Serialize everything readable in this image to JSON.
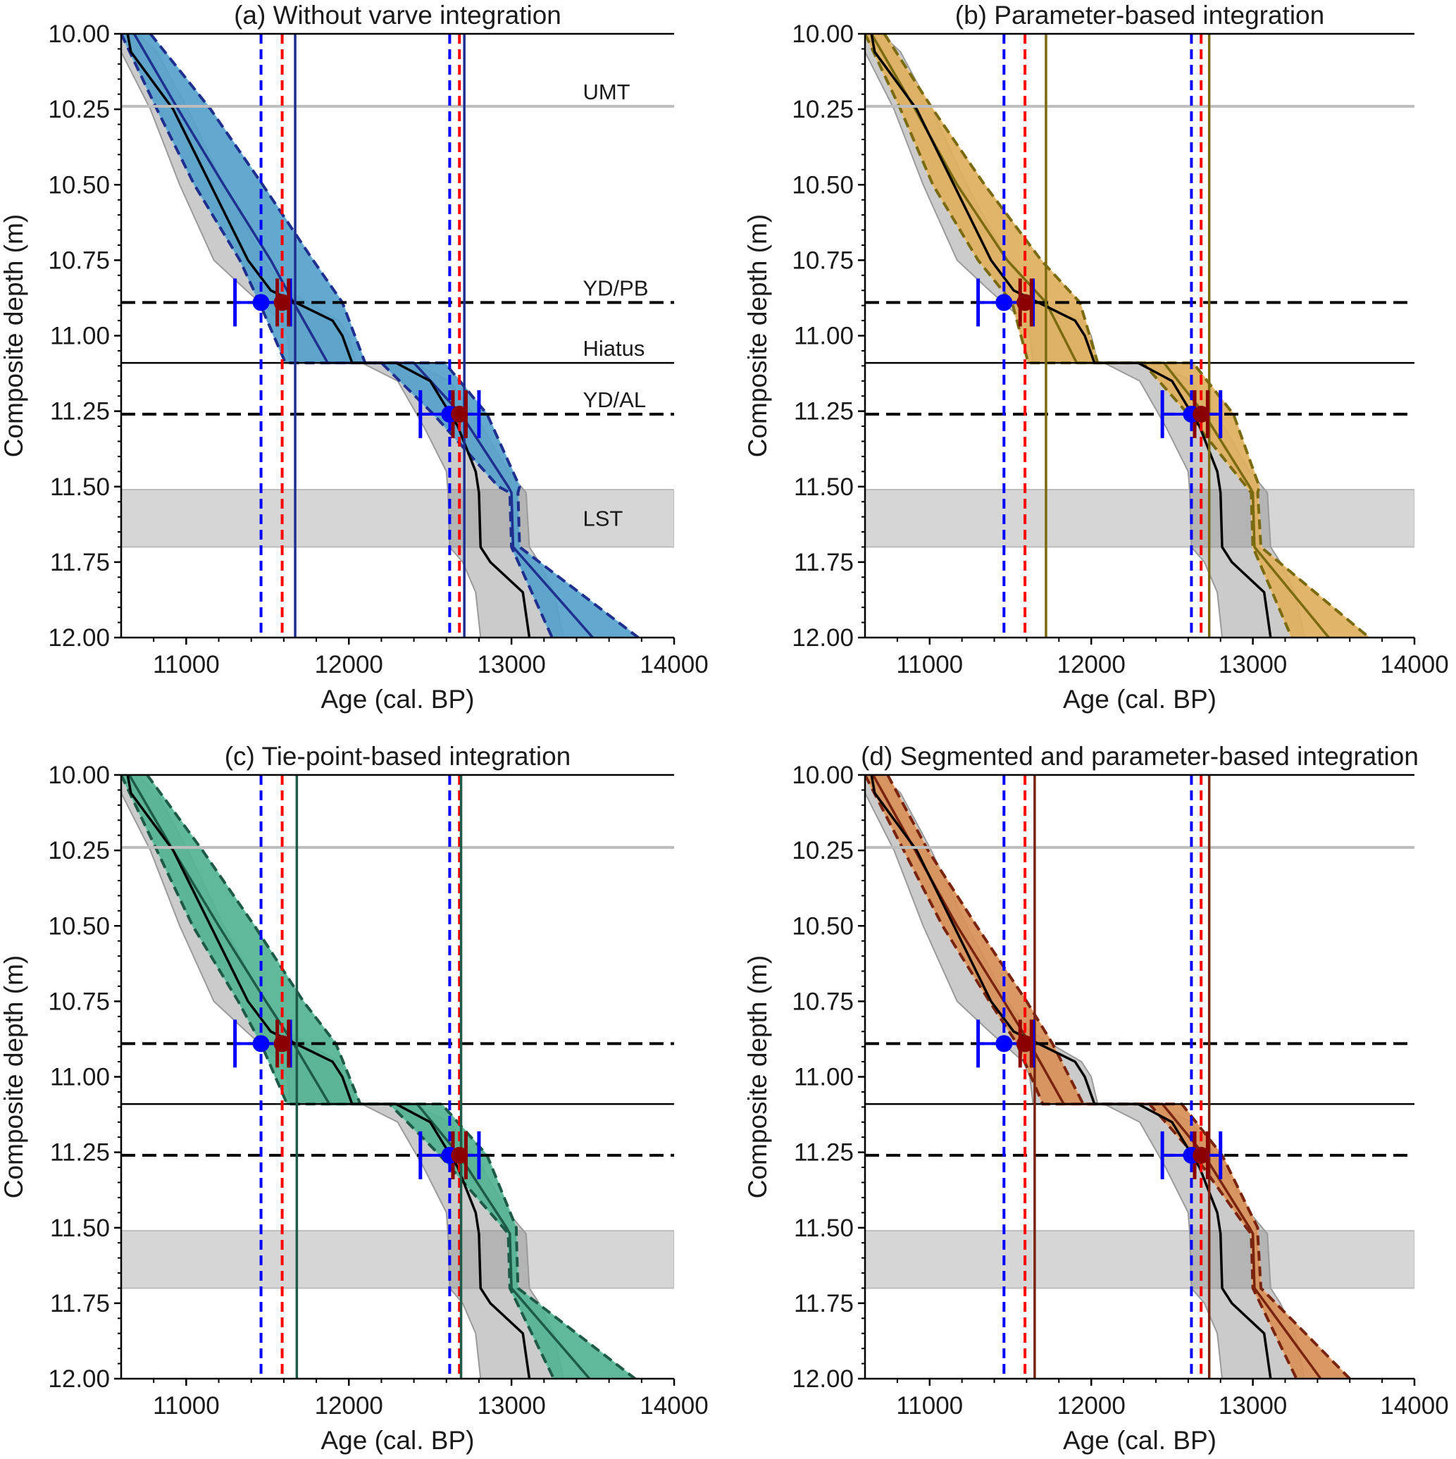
{
  "chart_data": {
    "type": "line",
    "layout": "2x2 grid",
    "x_axis": {
      "label": "Age (cal. BP)",
      "range": [
        10600,
        14000
      ],
      "ticks": [
        11000,
        12000,
        13000,
        14000
      ],
      "tick_labels": [
        "11000",
        "12000",
        "13000",
        "14000"
      ],
      "minor_step": 200
    },
    "y_axis": {
      "label": "Composite depth (m)",
      "range": [
        10.0,
        12.0
      ],
      "inverted": true,
      "ticks": [
        10.0,
        10.25,
        10.5,
        10.75,
        11.0,
        11.25,
        11.5,
        11.75,
        12.0
      ],
      "tick_labels": [
        "10.00",
        "10.25",
        "10.50",
        "10.75",
        "11.00",
        "11.25",
        "11.50",
        "11.75",
        "12.00"
      ],
      "minor_step": 0.05
    },
    "horizontal_markers": [
      {
        "name": "UMT",
        "depth": 10.24,
        "style": "grey-solid",
        "label_visible_in": [
          "a"
        ]
      },
      {
        "name": "YD/PB",
        "depth": 10.89,
        "style": "black-dashed",
        "label_visible_in": [
          "a"
        ]
      },
      {
        "name": "Hiatus",
        "depth": 11.09,
        "style": "black-solid",
        "label_visible_in": [
          "a"
        ]
      },
      {
        "name": "YD/AL",
        "depth": 11.26,
        "style": "black-dashed",
        "label_visible_in": [
          "a"
        ]
      }
    ],
    "shaded_depth_band": {
      "name": "LST",
      "depth_range": [
        11.51,
        11.7
      ],
      "label_visible_in": [
        "a"
      ]
    },
    "reference_model": {
      "name": "Reference age-depth model (black median, grey range)",
      "depth": [
        10.0,
        10.06,
        10.25,
        10.5,
        10.75,
        10.85,
        10.95,
        11.0,
        11.09,
        11.09,
        11.15,
        11.3,
        11.45,
        11.52,
        11.7,
        11.75,
        11.85,
        12.0
      ],
      "median": [
        10640,
        10660,
        10920,
        11150,
        11380,
        11520,
        11900,
        11960,
        12020,
        12290,
        12500,
        12670,
        12780,
        12800,
        12810,
        12870,
        13070,
        13110
      ],
      "lower": [
        10600,
        10600,
        10780,
        10960,
        11170,
        11370,
        11580,
        11620,
        11640,
        12080,
        12300,
        12460,
        12600,
        12610,
        12620,
        12700,
        12780,
        12810
      ],
      "upper": [
        10700,
        10820,
        11010,
        11230,
        11480,
        11620,
        11940,
        12000,
        12040,
        12390,
        12620,
        12820,
        12980,
        13090,
        13110,
        13170,
        13260,
        13320
      ]
    },
    "tie_points": [
      {
        "name": "YD/PB",
        "depth": 10.89,
        "blue_age": 11460,
        "blue_err": [
          11300,
          11640
        ],
        "red_age": 11590,
        "red_err": [
          11560,
          11630
        ]
      },
      {
        "name": "YD/AL",
        "depth": 11.26,
        "blue_age": 12620,
        "blue_err": [
          12440,
          12800
        ],
        "red_age": 12680,
        "red_err": [
          12640,
          12720
        ]
      }
    ],
    "vertical_lines": {
      "blue_dashed": [
        11460,
        12620
      ],
      "red_dashed": [
        11590,
        12680
      ]
    },
    "panels": [
      {
        "id": "a",
        "title": "(a) Without varve integration",
        "fill_color": "#3d8fc0",
        "fill_light": "#7fbbdd",
        "line_color": "#1f2f8f",
        "model_vlines": [
          11670,
          12710
        ],
        "depth": [
          10.0,
          10.25,
          10.5,
          10.75,
          10.89,
          11.09,
          11.09,
          11.26,
          11.5,
          11.52,
          11.7,
          12.0
        ],
        "median": [
          10680,
          10950,
          11230,
          11520,
          11660,
          11870,
          12400,
          12690,
          12980,
          13000,
          13010,
          13500
        ],
        "lower": [
          10600,
          10820,
          11050,
          11330,
          11450,
          11610,
          12200,
          12520,
          12920,
          12990,
          13000,
          13250
        ],
        "upper": [
          10780,
          11150,
          11470,
          11780,
          11960,
          12100,
          12590,
          12850,
          13050,
          13040,
          13050,
          13780
        ]
      },
      {
        "id": "b",
        "title": "(b) Parameter-based integration",
        "fill_color": "#d4a24a",
        "fill_light": "#f0c67e",
        "line_color": "#7a6a10",
        "model_vlines": [
          11720,
          12730
        ],
        "depth": [
          10.0,
          10.25,
          10.5,
          10.75,
          10.89,
          11.09,
          11.09,
          11.26,
          11.5,
          11.52,
          11.7,
          12.0
        ],
        "median": [
          10640,
          10910,
          11170,
          11480,
          11720,
          11910,
          12450,
          12700,
          12980,
          13000,
          13010,
          13470
        ],
        "lower": [
          10600,
          10820,
          11020,
          11300,
          11510,
          11610,
          12320,
          12600,
          12960,
          12990,
          13000,
          13240
        ],
        "upper": [
          10720,
          11020,
          11340,
          11690,
          11930,
          12040,
          12630,
          12880,
          13040,
          13030,
          13050,
          13720
        ]
      },
      {
        "id": "c",
        "title": "(c) Tie-point-based integration",
        "fill_color": "#3aa07e",
        "fill_light": "#7dd0b3",
        "line_color": "#1e5a48",
        "model_vlines": [
          11680,
          12690
        ],
        "depth": [
          10.0,
          10.25,
          10.5,
          10.75,
          10.89,
          11.09,
          11.09,
          11.26,
          11.5,
          11.52,
          11.7,
          12.0
        ],
        "median": [
          10650,
          10920,
          11200,
          11490,
          11660,
          11880,
          12420,
          12680,
          12970,
          12990,
          13000,
          13480
        ],
        "lower": [
          10600,
          10820,
          11040,
          11320,
          11460,
          11620,
          12250,
          12560,
          12950,
          12980,
          12990,
          13260
        ],
        "upper": [
          10760,
          11100,
          11420,
          11720,
          11920,
          12070,
          12570,
          12850,
          13030,
          13030,
          13040,
          13760
        ]
      },
      {
        "id": "d",
        "title": "(d) Segmented and parameter-based integration",
        "fill_color": "#c77a42",
        "fill_light": "#f0b27e",
        "line_color": "#7a2410",
        "model_vlines": [
          11650,
          12730
        ],
        "depth": [
          10.0,
          10.25,
          10.5,
          10.75,
          10.89,
          11.09,
          11.09,
          11.26,
          11.5,
          11.52,
          11.7,
          12.0
        ],
        "median": [
          10650,
          10910,
          11170,
          11460,
          11620,
          11830,
          12440,
          12700,
          12980,
          13000,
          13010,
          13420
        ],
        "lower": [
          10600,
          10840,
          11080,
          11370,
          11540,
          11700,
          12360,
          12640,
          12960,
          12990,
          13000,
          13270
        ],
        "upper": [
          10740,
          10990,
          11290,
          11600,
          11760,
          11950,
          12560,
          12810,
          13030,
          13030,
          13050,
          13600
        ]
      }
    ]
  }
}
